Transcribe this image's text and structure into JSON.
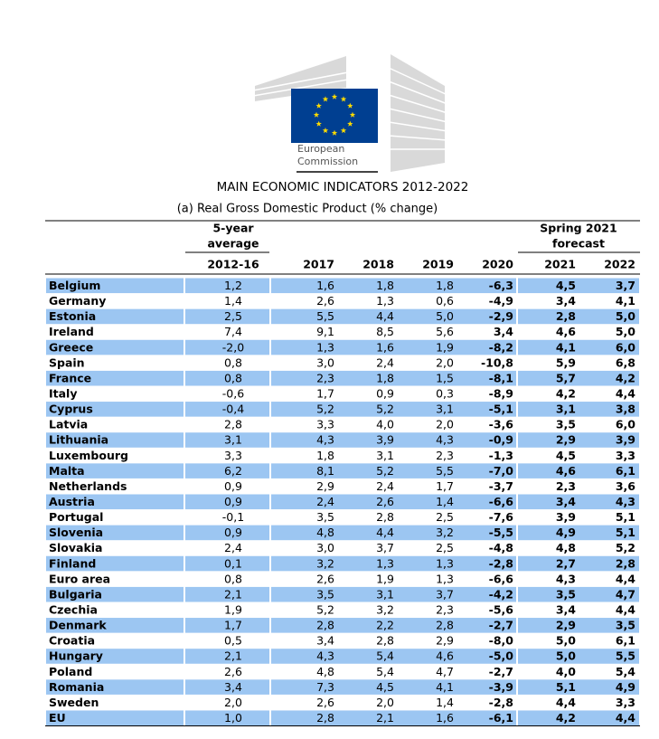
{
  "logo": {
    "line1": "European",
    "line2": "Commission"
  },
  "title": "MAIN ECONOMIC INDICATORS 2012-2022",
  "subtitle": "(a) Real Gross Domestic Product (% change)",
  "table": {
    "group_headers": {
      "average": [
        "5-year",
        "average"
      ],
      "forecast": [
        "Spring 2021",
        "forecast"
      ]
    },
    "columns": [
      "2012-16",
      "2017",
      "2018",
      "2019",
      "2020",
      "2021",
      "2022"
    ],
    "rows": [
      {
        "name": "Belgium",
        "values": [
          "1,2",
          "1,6",
          "1,8",
          "1,8",
          "-6,3",
          "4,5",
          "3,7"
        ]
      },
      {
        "name": "Germany",
        "values": [
          "1,4",
          "2,6",
          "1,3",
          "0,6",
          "-4,9",
          "3,4",
          "4,1"
        ]
      },
      {
        "name": "Estonia",
        "values": [
          "2,5",
          "5,5",
          "4,4",
          "5,0",
          "-2,9",
          "2,8",
          "5,0"
        ]
      },
      {
        "name": "Ireland",
        "values": [
          "7,4",
          "9,1",
          "8,5",
          "5,6",
          "3,4",
          "4,6",
          "5,0"
        ]
      },
      {
        "name": "Greece",
        "values": [
          "-2,0",
          "1,3",
          "1,6",
          "1,9",
          "-8,2",
          "4,1",
          "6,0"
        ]
      },
      {
        "name": "Spain",
        "values": [
          "0,8",
          "3,0",
          "2,4",
          "2,0",
          "-10,8",
          "5,9",
          "6,8"
        ]
      },
      {
        "name": "France",
        "values": [
          "0,8",
          "2,3",
          "1,8",
          "1,5",
          "-8,1",
          "5,7",
          "4,2"
        ]
      },
      {
        "name": "Italy",
        "values": [
          "-0,6",
          "1,7",
          "0,9",
          "0,3",
          "-8,9",
          "4,2",
          "4,4"
        ]
      },
      {
        "name": "Cyprus",
        "values": [
          "-0,4",
          "5,2",
          "5,2",
          "3,1",
          "-5,1",
          "3,1",
          "3,8"
        ]
      },
      {
        "name": "Latvia",
        "values": [
          "2,8",
          "3,3",
          "4,0",
          "2,0",
          "-3,6",
          "3,5",
          "6,0"
        ]
      },
      {
        "name": "Lithuania",
        "values": [
          "3,1",
          "4,3",
          "3,9",
          "4,3",
          "-0,9",
          "2,9",
          "3,9"
        ]
      },
      {
        "name": "Luxembourg",
        "values": [
          "3,3",
          "1,8",
          "3,1",
          "2,3",
          "-1,3",
          "4,5",
          "3,3"
        ]
      },
      {
        "name": "Malta",
        "values": [
          "6,2",
          "8,1",
          "5,2",
          "5,5",
          "-7,0",
          "4,6",
          "6,1"
        ]
      },
      {
        "name": "Netherlands",
        "values": [
          "0,9",
          "2,9",
          "2,4",
          "1,7",
          "-3,7",
          "2,3",
          "3,6"
        ]
      },
      {
        "name": "Austria",
        "values": [
          "0,9",
          "2,4",
          "2,6",
          "1,4",
          "-6,6",
          "3,4",
          "4,3"
        ]
      },
      {
        "name": "Portugal",
        "values": [
          "-0,1",
          "3,5",
          "2,8",
          "2,5",
          "-7,6",
          "3,9",
          "5,1"
        ]
      },
      {
        "name": "Slovenia",
        "values": [
          "0,9",
          "4,8",
          "4,4",
          "3,2",
          "-5,5",
          "4,9",
          "5,1"
        ]
      },
      {
        "name": "Slovakia",
        "values": [
          "2,4",
          "3,0",
          "3,7",
          "2,5",
          "-4,8",
          "4,8",
          "5,2"
        ]
      },
      {
        "name": "Finland",
        "values": [
          "0,1",
          "3,2",
          "1,3",
          "1,3",
          "-2,8",
          "2,7",
          "2,8"
        ]
      },
      {
        "name": "Euro area",
        "values": [
          "0,8",
          "2,6",
          "1,9",
          "1,3",
          "-6,6",
          "4,3",
          "4,4"
        ]
      },
      {
        "name": "Bulgaria",
        "values": [
          "2,1",
          "3,5",
          "3,1",
          "3,7",
          "-4,2",
          "3,5",
          "4,7"
        ]
      },
      {
        "name": "Czechia",
        "values": [
          "1,9",
          "5,2",
          "3,2",
          "2,3",
          "-5,6",
          "3,4",
          "4,4"
        ]
      },
      {
        "name": "Denmark",
        "values": [
          "1,7",
          "2,8",
          "2,2",
          "2,8",
          "-2,7",
          "2,9",
          "3,5"
        ]
      },
      {
        "name": "Croatia",
        "values": [
          "0,5",
          "3,4",
          "2,8",
          "2,9",
          "-8,0",
          "5,0",
          "6,1"
        ]
      },
      {
        "name": "Hungary",
        "values": [
          "2,1",
          "4,3",
          "5,4",
          "4,6",
          "-5,0",
          "5,0",
          "5,5"
        ]
      },
      {
        "name": "Poland",
        "values": [
          "2,6",
          "4,8",
          "5,4",
          "4,7",
          "-2,7",
          "4,0",
          "5,4"
        ]
      },
      {
        "name": "Romania",
        "values": [
          "3,4",
          "7,3",
          "4,5",
          "4,1",
          "-3,9",
          "5,1",
          "4,9"
        ]
      },
      {
        "name": "Sweden",
        "values": [
          "2,0",
          "2,6",
          "2,0",
          "1,4",
          "-2,8",
          "4,4",
          "3,3"
        ]
      },
      {
        "name": "EU",
        "values": [
          "1,0",
          "2,8",
          "2,1",
          "1,6",
          "-6,1",
          "4,2",
          "4,4"
        ]
      }
    ]
  }
}
